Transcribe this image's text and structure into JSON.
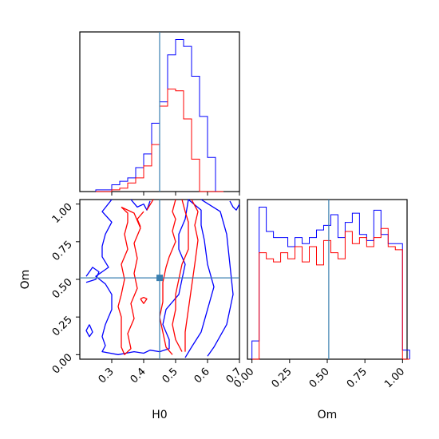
{
  "chart_data": {
    "type": "corner",
    "truth": {
      "H0": 0.45,
      "Om": 0.51
    },
    "truth_color": "#3a7fb0",
    "series": [
      {
        "color": "#0000ff"
      },
      {
        "color": "#ff0000"
      }
    ],
    "panels": {
      "hist_H0": {
        "xlim": [
          0.2,
          0.7
        ],
        "bin_width": 0.025,
        "bins_start": 0.25,
        "blue": [
          2,
          2,
          8,
          12,
          16,
          28,
          44,
          80,
          105,
          160,
          178,
          170,
          135,
          88,
          40,
          0
        ],
        "red": [
          0,
          0,
          2,
          4,
          10,
          16,
          30,
          55,
          100,
          120,
          118,
          85,
          38,
          0,
          0,
          0
        ]
      },
      "hist_Om": {
        "xlim": [
          -0.03,
          1.03
        ],
        "bin_width": 0.0476,
        "blue": [
          12,
          100,
          84,
          80,
          80,
          74,
          80,
          76,
          80,
          85,
          88,
          95,
          80,
          90,
          96,
          82,
          78,
          98,
          82,
          76,
          76,
          6
        ],
        "red": [
          0,
          70,
          66,
          64,
          70,
          66,
          74,
          64,
          74,
          62,
          78,
          70,
          66,
          84,
          76,
          80,
          74,
          80,
          86,
          74,
          72,
          0
        ]
      },
      "contour": {
        "xlim": [
          0.2,
          0.7
        ],
        "ylim": [
          -0.03,
          1.03
        ],
        "blue_paths": [
          [
            [
              0.3,
              1.03
            ],
            [
              0.27,
              0.95
            ],
            [
              0.3,
              0.88
            ],
            [
              0.28,
              0.8
            ],
            [
              0.27,
              0.72
            ],
            [
              0.27,
              0.65
            ],
            [
              0.29,
              0.58
            ],
            [
              0.25,
              0.52
            ],
            [
              0.28,
              0.47
            ],
            [
              0.3,
              0.4
            ],
            [
              0.3,
              0.3
            ],
            [
              0.28,
              0.2
            ],
            [
              0.27,
              0.12
            ],
            [
              0.28,
              0.06
            ],
            [
              0.27,
              0.02
            ],
            [
              0.32,
              0.0
            ],
            [
              0.37,
              0.02
            ],
            [
              0.4,
              0.01
            ],
            [
              0.42,
              0.03
            ],
            [
              0.45,
              0.02
            ],
            [
              0.48,
              0.04
            ],
            [
              0.48,
              0.1
            ],
            [
              0.46,
              0.2
            ],
            [
              0.47,
              0.3
            ],
            [
              0.51,
              0.4
            ],
            [
              0.52,
              0.5
            ],
            [
              0.53,
              0.6
            ],
            [
              0.51,
              0.7
            ],
            [
              0.51,
              0.8
            ],
            [
              0.53,
              0.9
            ],
            [
              0.54,
              1.03
            ]
          ],
          [
            [
              0.54,
              1.03
            ],
            [
              0.58,
              0.96
            ],
            [
              0.58,
              0.86
            ],
            [
              0.59,
              0.76
            ],
            [
              0.6,
              0.6
            ],
            [
              0.62,
              0.45
            ],
            [
              0.6,
              0.3
            ],
            [
              0.58,
              0.15
            ],
            [
              0.55,
              0.05
            ],
            [
              0.53,
              -0.02
            ]
          ],
          [
            [
              0.58,
              1.03
            ],
            [
              0.64,
              0.95
            ],
            [
              0.66,
              0.8
            ],
            [
              0.67,
              0.6
            ],
            [
              0.68,
              0.4
            ],
            [
              0.66,
              0.2
            ],
            [
              0.62,
              0.05
            ],
            [
              0.6,
              -0.01
            ]
          ],
          [
            [
              0.36,
              1.03
            ],
            [
              0.38,
              0.98
            ],
            [
              0.4,
              1.0
            ],
            [
              0.41,
              0.96
            ],
            [
              0.42,
              1.02
            ]
          ],
          [
            [
              0.23,
              0.2
            ],
            [
              0.24,
              0.15
            ],
            [
              0.23,
              0.12
            ],
            [
              0.22,
              0.16
            ],
            [
              0.23,
              0.2
            ]
          ],
          [
            [
              0.22,
              0.48
            ],
            [
              0.25,
              0.5
            ],
            [
              0.26,
              0.55
            ],
            [
              0.24,
              0.58
            ],
            [
              0.22,
              0.52
            ]
          ],
          [
            [
              0.67,
              1.02
            ],
            [
              0.68,
              0.98
            ],
            [
              0.69,
              0.96
            ],
            [
              0.7,
              1.0
            ]
          ]
        ],
        "red_paths": [
          [
            [
              0.33,
              0.98
            ],
            [
              0.35,
              0.94
            ],
            [
              0.35,
              0.88
            ],
            [
              0.34,
              0.8
            ],
            [
              0.35,
              0.7
            ],
            [
              0.33,
              0.6
            ],
            [
              0.34,
              0.5
            ],
            [
              0.33,
              0.4
            ],
            [
              0.32,
              0.32
            ],
            [
              0.33,
              0.25
            ],
            [
              0.33,
              0.15
            ],
            [
              0.33,
              0.05
            ],
            [
              0.34,
              0.0
            ],
            [
              0.36,
              0.04
            ],
            [
              0.35,
              0.14
            ],
            [
              0.37,
              0.24
            ],
            [
              0.36,
              0.34
            ],
            [
              0.38,
              0.44
            ],
            [
              0.37,
              0.54
            ],
            [
              0.38,
              0.64
            ],
            [
              0.37,
              0.74
            ],
            [
              0.39,
              0.84
            ],
            [
              0.37,
              0.94
            ],
            [
              0.33,
              0.98
            ]
          ],
          [
            [
              0.43,
              1.03
            ],
            [
              0.41,
              0.96
            ]
          ],
          [
            [
              0.5,
              1.03
            ],
            [
              0.49,
              0.95
            ],
            [
              0.5,
              0.9
            ],
            [
              0.49,
              0.82
            ],
            [
              0.5,
              0.75
            ],
            [
              0.48,
              0.65
            ],
            [
              0.47,
              0.58
            ],
            [
              0.46,
              0.48
            ],
            [
              0.46,
              0.35
            ],
            [
              0.45,
              0.25
            ],
            [
              0.46,
              0.15
            ],
            [
              0.47,
              0.05
            ],
            [
              0.49,
              0.0
            ]
          ],
          [
            [
              0.52,
              1.03
            ],
            [
              0.53,
              0.95
            ],
            [
              0.54,
              0.88
            ],
            [
              0.54,
              0.8
            ],
            [
              0.54,
              0.7
            ],
            [
              0.52,
              0.6
            ],
            [
              0.51,
              0.5
            ],
            [
              0.5,
              0.4
            ],
            [
              0.5,
              0.3
            ],
            [
              0.49,
              0.2
            ],
            [
              0.5,
              0.1
            ],
            [
              0.52,
              0.02
            ]
          ],
          [
            [
              0.55,
              1.03
            ],
            [
              0.57,
              0.95
            ],
            [
              0.56,
              0.86
            ],
            [
              0.57,
              0.76
            ],
            [
              0.56,
              0.6
            ],
            [
              0.55,
              0.45
            ],
            [
              0.54,
              0.3
            ],
            [
              0.53,
              0.15
            ],
            [
              0.53,
              0.02
            ]
          ],
          [
            [
              0.39,
              0.37
            ],
            [
              0.4,
              0.34
            ],
            [
              0.41,
              0.37
            ],
            [
              0.4,
              0.38
            ],
            [
              0.39,
              0.37
            ]
          ],
          [
            [
              0.4,
              0.95
            ],
            [
              0.38,
              0.9
            ],
            [
              0.39,
              0.85
            ]
          ]
        ]
      }
    },
    "axes": {
      "x_H0": {
        "label": "H0",
        "ticks": [
          0.3,
          0.4,
          0.5,
          0.6,
          0.7
        ],
        "tick_labels": [
          "0.3",
          "0.4",
          "0.5",
          "0.6",
          "0.7"
        ]
      },
      "y_Om": {
        "label": "Om",
        "ticks": [
          0.0,
          0.25,
          0.5,
          0.75,
          1.0
        ],
        "tick_labels": [
          "0.00",
          "0.25",
          "0.50",
          "0.75",
          "1.00"
        ]
      },
      "x_Om": {
        "label": "Om",
        "ticks": [
          0.0,
          0.25,
          0.5,
          0.75,
          1.0
        ],
        "tick_labels": [
          "0.00",
          "0.25",
          "0.50",
          "0.75",
          "1.00"
        ]
      }
    }
  }
}
